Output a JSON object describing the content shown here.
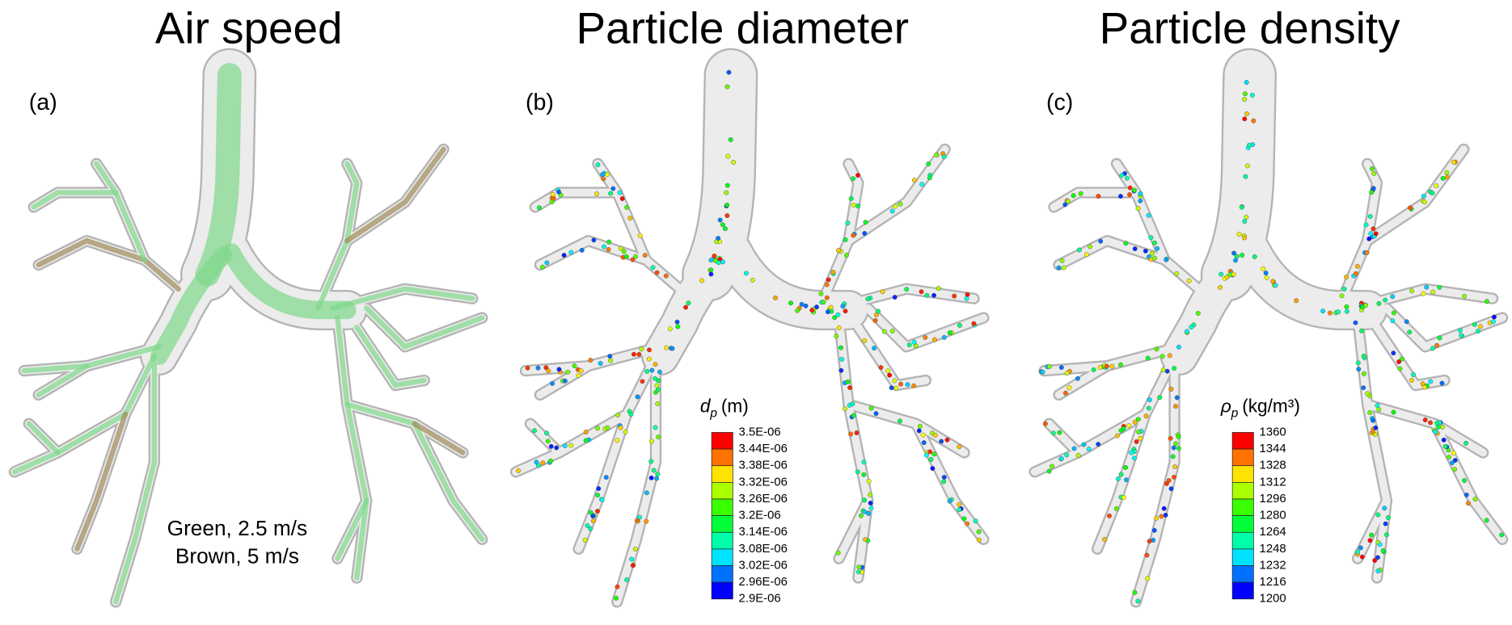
{
  "panels": [
    {
      "title": "Air speed",
      "label": "(a)",
      "annotation": [
        "Green, 2.5 m/s",
        "Brown, 5 m/s"
      ]
    },
    {
      "title": "Particle diameter",
      "label": "(b)",
      "colorbar": {
        "symbol": "d",
        "subscript": "p",
        "unit": "(m)",
        "ticks": [
          "3.5E-06",
          "3.44E-06",
          "3.38E-06",
          "3.32E-06",
          "3.26E-06",
          "3.2E-06",
          "3.14E-06",
          "3.08E-06",
          "3.02E-06",
          "2.96E-06",
          "2.9E-06"
        ]
      }
    },
    {
      "title": "Particle density",
      "label": "(c)",
      "colorbar": {
        "symbol": "ρ",
        "subscript": "p",
        "unit": "(kg/m³)",
        "ticks": [
          1360,
          1344,
          1328,
          1312,
          1296,
          1280,
          1264,
          1248,
          1232,
          1216,
          1200
        ]
      }
    }
  ]
}
